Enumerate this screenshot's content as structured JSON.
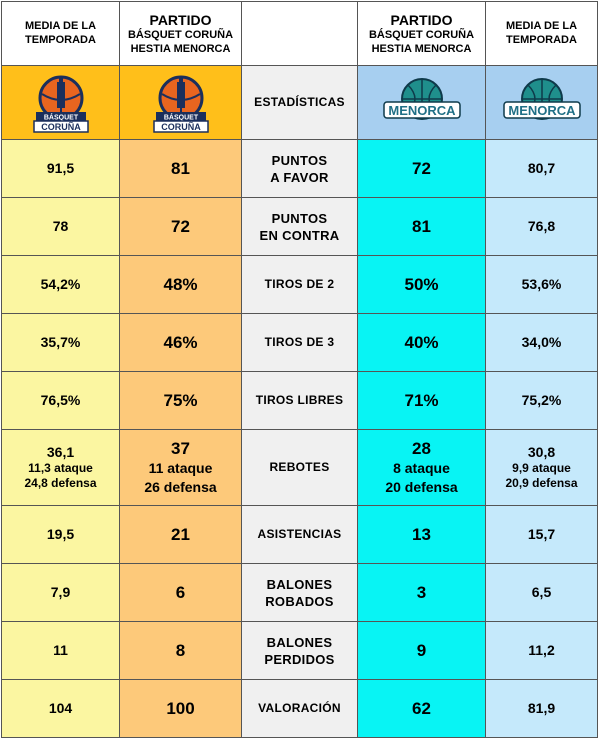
{
  "header": {
    "season_avg_label": "MEDIA DE LA TEMPORADA",
    "match_title": "PARTIDO",
    "match_subtitle_line1": "BÁSQUET CORUÑA",
    "match_subtitle_line2": "HESTIA MENORCA",
    "stats_label": "ESTADÍSTICAS"
  },
  "logos": {
    "coruna": {
      "text_top": "BÁSQUET",
      "text_bottom": "CORUÑA"
    },
    "menorca": {
      "text": "MENORCA"
    }
  },
  "colors": {
    "coruna_season": "#fbf6a1",
    "coruna_match": "#fdc97a",
    "menorca_match": "#08f4f4",
    "menorca_season": "#c5e9fb",
    "coruna_logo_bg": "#ffbf1a",
    "menorca_logo_bg": "#a7cff0"
  },
  "rows": [
    {
      "label_1": "PUNTOS",
      "label_2": "A FAVOR",
      "coruna_avg": "91,5",
      "coruna_match": "81",
      "menorca_match": "72",
      "menorca_avg": "80,7"
    },
    {
      "label_1": "PUNTOS",
      "label_2": "EN CONTRA",
      "coruna_avg": "78",
      "coruna_match": "72",
      "menorca_match": "81",
      "menorca_avg": "76,8"
    },
    {
      "label_1": "TIROS DE 2",
      "label_2": "",
      "coruna_avg": "54,2%",
      "coruna_match": "48%",
      "menorca_match": "50%",
      "menorca_avg": "53,6%"
    },
    {
      "label_1": "TIROS DE 3",
      "label_2": "",
      "coruna_avg": "35,7%",
      "coruna_match": "46%",
      "menorca_match": "40%",
      "menorca_avg": "34,0%"
    },
    {
      "label_1": "TIROS LIBRES",
      "label_2": "",
      "coruna_avg": "76,5%",
      "coruna_match": "75%",
      "menorca_match": "71%",
      "menorca_avg": "75,2%"
    },
    {
      "label_1": "REBOTES",
      "label_2": "",
      "coruna_avg": "36,1",
      "coruna_avg_attack": "11,3 ataque",
      "coruna_avg_defense": "24,8 defensa",
      "coruna_match": "37",
      "coruna_match_attack": "11 ataque",
      "coruna_match_defense": "26 defensa",
      "menorca_match": "28",
      "menorca_match_attack": "8 ataque",
      "menorca_match_defense": "20 defensa",
      "menorca_avg": "30,8",
      "menorca_avg_attack": "9,9 ataque",
      "menorca_avg_defense": "20,9 defensa"
    },
    {
      "label_1": "ASISTENCIAS",
      "label_2": "",
      "coruna_avg": "19,5",
      "coruna_match": "21",
      "menorca_match": "13",
      "menorca_avg": "15,7"
    },
    {
      "label_1": "BALONES",
      "label_2": "ROBADOS",
      "coruna_avg": "7,9",
      "coruna_match": "6",
      "menorca_match": "3",
      "menorca_avg": "6,5"
    },
    {
      "label_1": "BALONES",
      "label_2": "PERDIDOS",
      "coruna_avg": "11",
      "coruna_match": "8",
      "menorca_match": "9",
      "menorca_avg": "11,2"
    },
    {
      "label_1": "VALORACIÓN",
      "label_2": "",
      "coruna_avg": "104",
      "coruna_match": "100",
      "menorca_match": "62",
      "menorca_avg": "81,9"
    }
  ]
}
